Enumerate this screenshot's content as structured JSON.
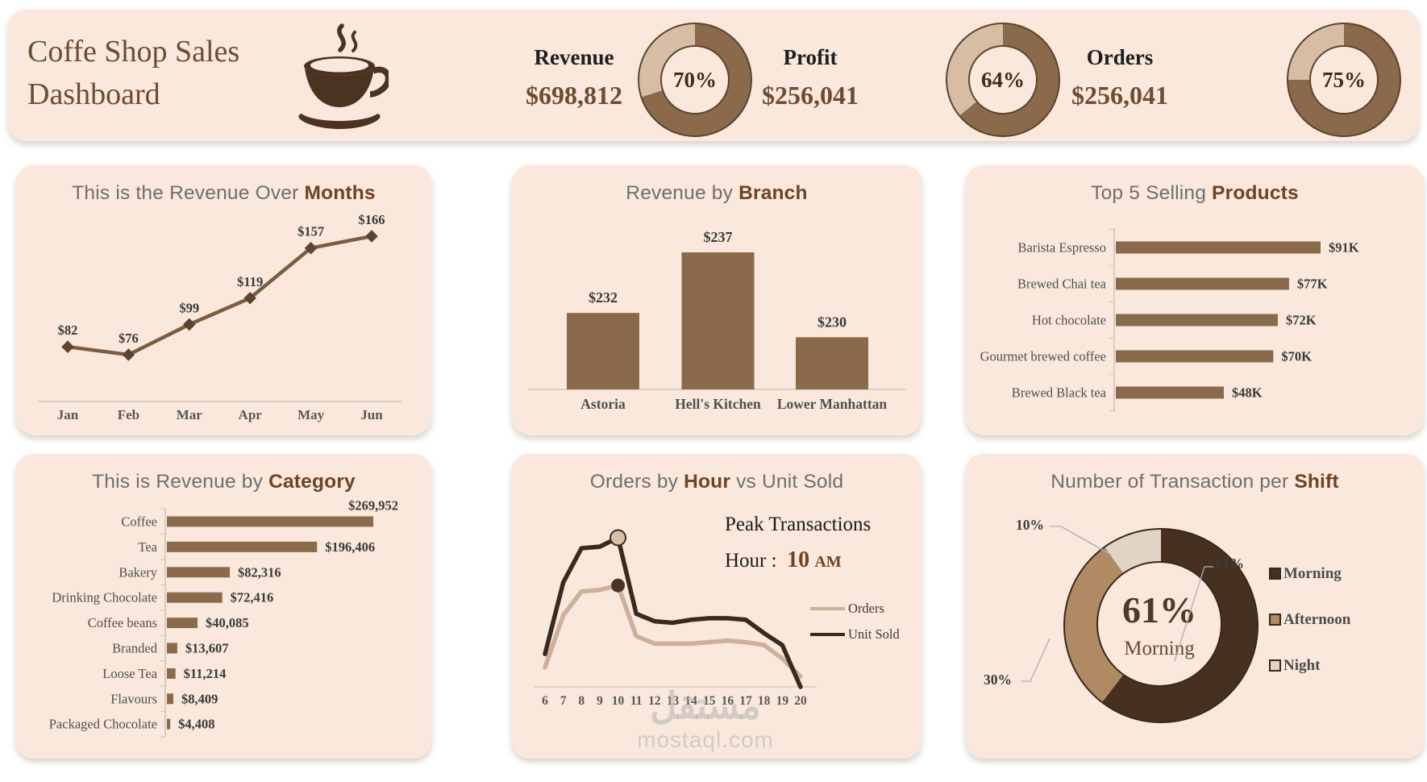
{
  "header": {
    "title_line1": "Coffe Shop Sales",
    "title_line2": "Dashboard",
    "kpis": [
      {
        "label": "Revenue",
        "value": "$698,812",
        "percent": 70,
        "percent_label": "70%"
      },
      {
        "label": "Profit",
        "value": "$256,041",
        "percent": 64,
        "percent_label": "64%"
      },
      {
        "label": "Orders",
        "value": "$256,041",
        "percent": 75,
        "percent_label": "75%"
      }
    ]
  },
  "colors": {
    "card_bg": "#f9e8db",
    "accent": "#6e4326",
    "bar": "#8b6a4c",
    "donut_dark": "#8b6a4c",
    "donut_light": "#d7bda3",
    "line_med": "#7b5c41",
    "marker": "#5d4430",
    "line_dark": "#3a2a1e",
    "line_light": "#ccb09a",
    "morning": "#46301f",
    "afternoon": "#b08a63",
    "night": "#e0d4c6",
    "leader": "#a8aeb6",
    "axis": "#cfc3b6"
  },
  "watermark": {
    "arabic": "مستقل",
    "domain": "mostaql.com"
  },
  "chart_data": [
    {
      "id": "revenue_over_months",
      "type": "line",
      "title_parts": [
        [
          "This is the Revenue Over ",
          false
        ],
        [
          "Months",
          true
        ]
      ],
      "categories": [
        "Jan",
        "Feb",
        "Mar",
        "Apr",
        "May",
        "Jun"
      ],
      "values": [
        82,
        76,
        99,
        119,
        157,
        166
      ],
      "labels": [
        "$82",
        "$76",
        "$99",
        "$119",
        "$157",
        "$166"
      ],
      "xlabel": "",
      "ylabel": "",
      "grid": false
    },
    {
      "id": "revenue_by_branch",
      "type": "bar",
      "title_parts": [
        [
          "Revenue by ",
          false
        ],
        [
          "Branch",
          true
        ]
      ],
      "categories": [
        "Astoria",
        "Hell's Kitchen",
        "Lower Manhattan"
      ],
      "values": [
        232,
        237,
        230
      ],
      "labels": [
        "$232",
        "$237",
        "$230"
      ],
      "ylim": [
        225.7,
        237
      ]
    },
    {
      "id": "top_5_selling_products",
      "type": "hbar",
      "title_parts": [
        [
          "Top 5 Selling ",
          false
        ],
        [
          "Products",
          true
        ]
      ],
      "categories": [
        "Barista Espresso",
        "Brewed Chai tea",
        "Hot chocolate",
        "Gourmet brewed coffee",
        "Brewed Black tea"
      ],
      "values": [
        91,
        77,
        72,
        70,
        48
      ],
      "labels": [
        "$91K",
        "$77K",
        "$72K",
        "$70K",
        "$48K"
      ]
    },
    {
      "id": "revenue_by_category",
      "type": "hbar",
      "title_parts": [
        [
          "This is Revenue by ",
          false
        ],
        [
          "Category",
          true
        ]
      ],
      "categories": [
        "Coffee",
        "Tea",
        "Bakery",
        "Drinking Chocolate",
        "Coffee beans",
        "Branded",
        "Loose Tea",
        "Flavours",
        "Packaged Chocolate"
      ],
      "values": [
        269952,
        196406,
        82316,
        72416,
        40085,
        13607,
        11214,
        8409,
        4408
      ],
      "labels": [
        "$269,952",
        "$196,406",
        "$82,316",
        "$72,416",
        "$40,085",
        "$13,607",
        "$11,214",
        "$8,409",
        "$4,408"
      ]
    },
    {
      "id": "orders_by_hour_vs_unit_sold",
      "type": "line",
      "title_parts": [
        [
          "Orders by ",
          false
        ],
        [
          "Hour",
          true
        ],
        [
          " vs Unit Sold",
          false
        ]
      ],
      "x": [
        6,
        7,
        8,
        9,
        10,
        11,
        12,
        13,
        14,
        15,
        16,
        17,
        18,
        19,
        20
      ],
      "series": [
        {
          "name": "Orders",
          "values": [
            13,
            48,
            64,
            65,
            68,
            34,
            29,
            29,
            29,
            30,
            31,
            30,
            28,
            19,
            7
          ]
        },
        {
          "name": "Unit Sold",
          "values": [
            22,
            70,
            93,
            94,
            100,
            49,
            44,
            43,
            45,
            46,
            46,
            45,
            36,
            28,
            0
          ]
        }
      ],
      "peak": {
        "text": "Peak Transactions",
        "prefix": "Hour :",
        "value": "10",
        "suffix": "AM",
        "hour": 10
      },
      "note": "y-axis unlabeled; values are relative units"
    },
    {
      "id": "transactions_per_shift",
      "type": "donut",
      "title_parts": [
        [
          "Number of Transaction per ",
          false
        ],
        [
          "Shift",
          true
        ]
      ],
      "categories": [
        "Morning",
        "Afternoon",
        "Night"
      ],
      "values": [
        61,
        30,
        10
      ],
      "labels": [
        "61%",
        "30%",
        "10%"
      ],
      "center": {
        "value": "61%",
        "label": "Morning"
      },
      "legend_position": "right"
    }
  ]
}
